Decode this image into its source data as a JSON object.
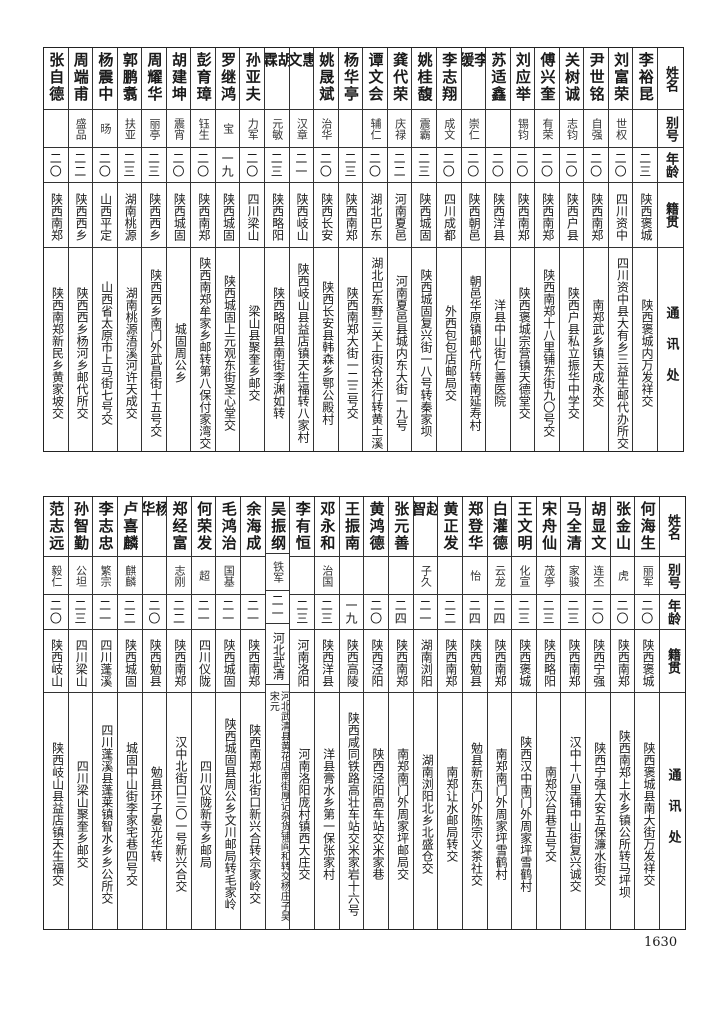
{
  "header": {
    "name": "姓名",
    "alias": "别号",
    "age": "年龄",
    "native": "籍贯",
    "address": "通讯处"
  },
  "tables": [
    {
      "rows": [
        {
          "name": "李裕昆",
          "alias": "",
          "age": "二三",
          "native": "陕西褒城",
          "address": "陕西褒城内万发祥交"
        },
        {
          "name": "刘富荣",
          "alias": "世权",
          "age": "二〇",
          "native": "四川资中",
          "address": "四川资中县大有乡三益生邮代办所交"
        },
        {
          "name": "尹世铭",
          "alias": "自强",
          "age": "二〇",
          "native": "陕西南郑",
          "address": "南郑武乡镇天成永交"
        },
        {
          "name": "关树诚",
          "alias": "志钧",
          "age": "二〇",
          "native": "陕西户县",
          "address": "陕西户县私立振华中学交"
        },
        {
          "name": "傅兴奎",
          "alias": "有荣",
          "age": "二〇",
          "native": "陕西南郑",
          "address": "陕西南郑十八里铺东街九〇号交"
        },
        {
          "name": "刘应举",
          "alias": "锡钧",
          "age": "二〇",
          "native": "陕西南郑",
          "address": "陕西褒城宗营镇天德堂交"
        },
        {
          "name": "苏适鑫",
          "alias": "",
          "age": "二〇",
          "native": "陕西洋县",
          "address": "洋县中山街仁善医院"
        },
        {
          "name": "李缓",
          "alias": "崇仁",
          "age": "二〇",
          "native": "陕西朝邑",
          "address": "朝邑华原镇邮代所转南延寿村"
        },
        {
          "name": "李志翔",
          "alias": "成文",
          "age": "二〇",
          "native": "四川成都",
          "address": "外西包包店邮局交"
        },
        {
          "name": "姚桂馥",
          "alias": "震霸",
          "age": "二三",
          "native": "陕西城固",
          "address": "陕西城固复兴街一八号转秦家坝"
        },
        {
          "name": "龚代荣",
          "alias": "庆禄",
          "age": "二二",
          "native": "河南夏邑",
          "address": "河南夏邑县城内东大街一九号"
        },
        {
          "name": "谭文会",
          "alias": "辅仁",
          "age": "二〇",
          "native": "湖北巴东",
          "address": "湖北巴东野三关上街谷米行转黄土溪"
        },
        {
          "name": "杨华亭",
          "alias": "",
          "age": "二三",
          "native": "陕西南郑",
          "address": "陕西南郑大街一二三号交"
        },
        {
          "name": "姚晟斌",
          "alias": "治华",
          "age": "二〇",
          "native": "陕西长安",
          "address": "陕西长安县韩森乡鄂公殿村"
        },
        {
          "name": "惠文",
          "alias": "汉章",
          "age": "二一",
          "native": "陕西岐山",
          "address": "陕西岐山县益店镇天生福转八家村"
        },
        {
          "name": "胡霖",
          "alias": "元敏",
          "age": "二三",
          "native": "陕西略阳",
          "address": "陕西略阳县南街李渊如转"
        },
        {
          "name": "孙亚夫",
          "alias": "力军",
          "age": "二〇",
          "native": "四川梁山",
          "address": "梁山县聚奎乡邮交"
        },
        {
          "name": "罗继鸿",
          "alias": "宝",
          "age": "一九",
          "native": "陕西城固",
          "address": "陕西城固上元观东街圣心堂交"
        },
        {
          "name": "彭育璋",
          "alias": "钰生",
          "age": "二〇",
          "native": "陕西南郑",
          "address": "陕西南郑牟家乡邮转第八保付家湾交"
        },
        {
          "name": "胡建坤",
          "alias": "震宵",
          "age": "二〇",
          "native": "陕西城固",
          "address": "城固周公乡"
        },
        {
          "name": "周耀华",
          "alias": "丽亭",
          "age": "二三",
          "native": "陕西西乡",
          "address": "陕西西乡南门外武昌街十五号交"
        },
        {
          "name": "郭鹏翥",
          "alias": "扶亚",
          "age": "二三",
          "native": "湖南桃源",
          "address": "湖南桃源浯溪河许天成交"
        },
        {
          "name": "杨震中",
          "alias": "旸",
          "age": "二〇",
          "native": "山西平定",
          "address": "山西省太原市上马街七号交"
        },
        {
          "name": "周端甫",
          "alias": "盛品",
          "age": "二二",
          "native": "陕西西乡",
          "address": "陕西西乡杨河乡邮代所交"
        },
        {
          "name": "张自德",
          "alias": "",
          "age": "二〇",
          "native": "陕西南郑",
          "address": "陕西南郑新民乡黄家坡交"
        }
      ]
    },
    {
      "rows": [
        {
          "name": "何海生",
          "alias": "丽军",
          "age": "二〇",
          "native": "陕西褒城",
          "address": "陕西褒城县南大街万发祥交"
        },
        {
          "name": "张金山",
          "alias": "虎",
          "age": "二〇",
          "native": "陕西南郑",
          "address": "陕西南郑上水乡镇公所转马坪坝"
        },
        {
          "name": "胡显文",
          "alias": "连丕",
          "age": "二〇",
          "native": "陕西宁强",
          "address": "陕西宁强大安五保濂水街交"
        },
        {
          "name": "马全清",
          "alias": "家骏",
          "age": "二三",
          "native": "陕西南郑",
          "address": "汉中十八里铺中山街复兴诚交"
        },
        {
          "name": "宋舟仙",
          "alias": "茂亭",
          "age": "二三",
          "native": "陕西略阳",
          "address": "南郑汉台巷五号交"
        },
        {
          "name": "王文明",
          "alias": "化宣",
          "age": "二三",
          "native": "陕西褒城",
          "address": "陕西汉中南门外周家坪雪鹤村"
        },
        {
          "name": "白灌德",
          "alias": "云龙",
          "age": "二四",
          "native": "陕西南郑",
          "address": "南郑南门外周家坪雪鹤村"
        },
        {
          "name": "郑登华",
          "alias": "怡",
          "age": "二四",
          "native": "陕西勉县",
          "address": "勉县新东门外陈宗义茶社交"
        },
        {
          "name": "黄正发",
          "alias": "",
          "age": "二二",
          "native": "陕西南郑",
          "address": "南郑让水邮局转交"
        },
        {
          "name": "赵智",
          "alias": "子久",
          "age": "二一",
          "native": "湖南浏阳",
          "address": "湖南浏阳北乡北盛仓交"
        },
        {
          "name": "张元善",
          "alias": "",
          "age": "二四",
          "native": "陕西南郑",
          "address": "南郑南门外周家坪邮局交"
        },
        {
          "name": "黄鸿德",
          "alias": "",
          "age": "二〇",
          "native": "陕西泾阳",
          "address": "陕西泾阳高车站交米家巷"
        },
        {
          "name": "王振南",
          "alias": "",
          "age": "一九",
          "native": "陕西高陵",
          "address": "陕西咸同铁路高壮车站交米家岩十六号"
        },
        {
          "name": "邓永和",
          "alias": "治国",
          "age": "二三",
          "native": "陕西洋县",
          "address": "洋县膏水乡第一保张家村"
        },
        {
          "name": "李有恒",
          "alias": "",
          "age": "二三",
          "native": "河南洛阳",
          "address": "河南洛阳庞村镇西大庄交"
        },
        {
          "name": "吴振纲",
          "alias": "铁军",
          "age": "二一",
          "native": "河北武清",
          "address": "河北武清县黄花店南街厚记杂货铺阎和转交杨庄子吴宋元"
        },
        {
          "name": "余海成",
          "alias": "",
          "age": "二一",
          "native": "陕西南郑",
          "address": "陕西南郑北街口新兴合转佘家岭交"
        },
        {
          "name": "毛鸿治",
          "alias": "国基",
          "age": "二一",
          "native": "陕西城固",
          "address": "陕西城固县周公乡文川邮局转毛家岭"
        },
        {
          "name": "何荣发",
          "alias": "超",
          "age": "二一",
          "native": "四川仪陇",
          "address": "四川仪陇新寺乡邮局"
        },
        {
          "name": "郑经富",
          "alias": "志刚",
          "age": "二二",
          "native": "陕西南郑",
          "address": "汉中北街口三〇一号新兴合交"
        },
        {
          "name": "杨华",
          "alias": "",
          "age": "二〇",
          "native": "陕西勉县",
          "address": "勉县环子晏光华转"
        },
        {
          "name": "卢喜麟",
          "alias": "麒麟",
          "age": "二二",
          "native": "陕西城固",
          "address": "城固中山街李家宅巷四号交"
        },
        {
          "name": "李志忠",
          "alias": "繁宗",
          "age": "二一",
          "native": "四川蓬溪",
          "address": "四川蓬溪县蓬莱镇智水乡乡公所交"
        },
        {
          "name": "孙智勤",
          "alias": "公坦",
          "age": "二三",
          "native": "四川梁山",
          "address": "四川梁山聚奎乡邮交"
        },
        {
          "name": "范志远",
          "alias": "毅仁",
          "age": "二〇",
          "native": "陕西岐山",
          "address": "陕西岐山县益店镇天生福交"
        }
      ]
    }
  ],
  "page_number": "1630"
}
